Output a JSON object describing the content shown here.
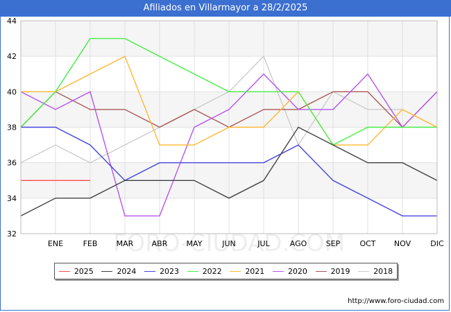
{
  "title": "Afiliados en Villarmayor a 28/2/2025",
  "url": "http://www.foro-ciudad.com",
  "watermark": "FORO-CIUDAD.COM",
  "chart_data": {
    "type": "line",
    "title": "Afiliados en Villarmayor a 28/2/2025",
    "categories": [
      "",
      "ENE",
      "FEB",
      "MAR",
      "ABR",
      "MAY",
      "JUN",
      "JUL",
      "AGO",
      "SEP",
      "OCT",
      "NOV",
      "DIC"
    ],
    "ylim": [
      32,
      44
    ],
    "yticks": [
      32,
      34,
      36,
      38,
      40,
      42,
      44
    ],
    "grid": true,
    "legend_position": "bottom",
    "series": [
      {
        "name": "2025",
        "color": "#ff4b4b",
        "values": [
          35,
          35,
          35,
          null,
          null,
          null,
          null,
          null,
          null,
          null,
          null,
          null,
          null
        ]
      },
      {
        "name": "2024",
        "color": "#404040",
        "values": [
          33,
          34,
          34,
          35,
          35,
          35,
          34,
          35,
          38,
          37,
          36,
          36,
          35
        ]
      },
      {
        "name": "2023",
        "color": "#4444dd",
        "values": [
          38,
          38,
          37,
          35,
          36,
          36,
          36,
          36,
          37,
          35,
          34,
          33,
          33
        ]
      },
      {
        "name": "2022",
        "color": "#44ee44",
        "values": [
          38,
          40,
          43,
          43,
          42,
          41,
          40,
          40,
          40,
          37,
          38,
          38,
          38
        ]
      },
      {
        "name": "2021",
        "color": "#ffb732",
        "values": [
          40,
          40,
          41,
          42,
          37,
          37,
          38,
          38,
          40,
          37,
          37,
          39,
          38
        ]
      },
      {
        "name": "2020",
        "color": "#b455ee",
        "values": [
          40,
          39,
          40,
          33,
          33,
          38,
          39,
          41,
          39,
          39,
          41,
          38,
          40
        ]
      },
      {
        "name": "2019",
        "color": "#aa5555",
        "values": [
          38,
          40,
          39,
          39,
          38,
          39,
          38,
          39,
          39,
          40,
          40,
          38,
          40
        ]
      },
      {
        "name": "2018",
        "color": "#cccccc",
        "values": [
          36,
          37,
          36,
          37,
          38,
          39,
          40,
          42,
          37,
          40,
          39,
          39,
          38
        ]
      }
    ]
  }
}
